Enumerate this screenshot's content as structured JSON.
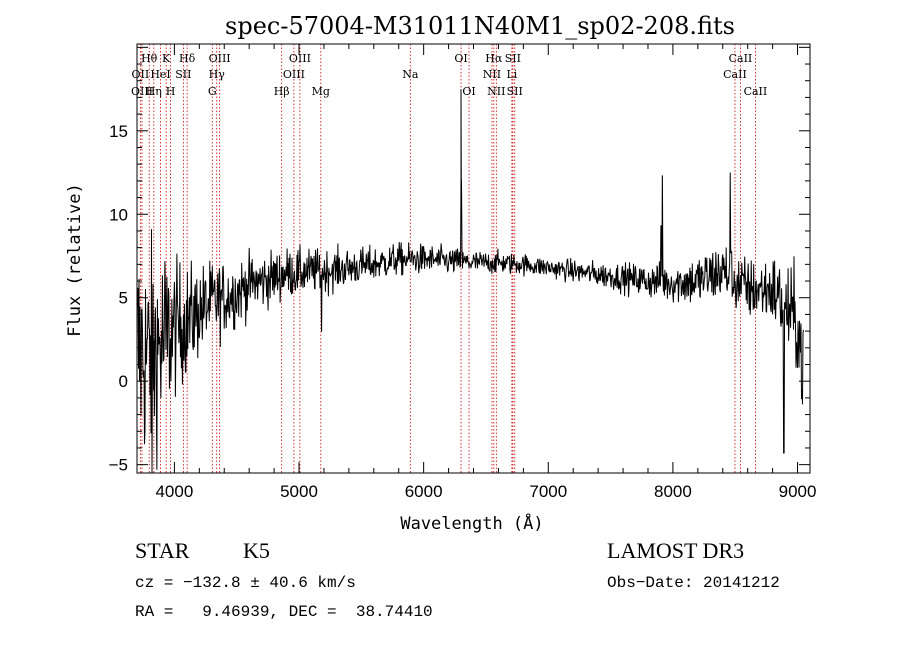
{
  "chart_data": {
    "type": "line",
    "title": "spec-57004-M31011N40M1_sp02-208.fits",
    "xlabel": "Wavelength (Å)",
    "ylabel": "Flux (relative)",
    "xlim": [
      3700,
      9100
    ],
    "ylim": [
      -5.5,
      20.2
    ],
    "x_ticks": [
      4000,
      5000,
      6000,
      7000,
      8000,
      9000
    ],
    "y_ticks": [
      -5,
      0,
      5,
      10,
      15
    ],
    "x_tick_labels": [
      "4000",
      "5000",
      "6000",
      "7000",
      "8000",
      "9000"
    ],
    "y_tick_labels": [
      "−5",
      "0",
      "5",
      "10",
      "15"
    ],
    "line_color": "#000000",
    "marker_color": "#cc0000",
    "spectral_lines": [
      {
        "label": "Hθ",
        "wavelength": 3798,
        "row": 1
      },
      {
        "label": "OII",
        "wavelength": 3727,
        "row": 2
      },
      {
        "label": "OIII",
        "wavelength": 3740,
        "row": 3
      },
      {
        "label": "Hη",
        "wavelength": 3835,
        "row": 3
      },
      {
        "label": "K",
        "wavelength": 3934,
        "row": 1
      },
      {
        "label": "HeI",
        "wavelength": 3889,
        "row": 2
      },
      {
        "label": "H",
        "wavelength": 3969,
        "row": 3
      },
      {
        "label": "SII",
        "wavelength": 4072,
        "row": 2
      },
      {
        "label": "Hδ",
        "wavelength": 4102,
        "row": 1
      },
      {
        "label": "OIII",
        "wavelength": 4363,
        "row": 1
      },
      {
        "label": "Hγ",
        "wavelength": 4340,
        "row": 2
      },
      {
        "label": "G",
        "wavelength": 4304,
        "row": 3
      },
      {
        "label": "Hβ",
        "wavelength": 4861,
        "row": 3
      },
      {
        "label": "OIII",
        "wavelength": 5007,
        "row": 1
      },
      {
        "label": "OIII",
        "wavelength": 4959,
        "row": 2
      },
      {
        "label": "Mg",
        "wavelength": 5175,
        "row": 3
      },
      {
        "label": "Na",
        "wavelength": 5893,
        "row": 2
      },
      {
        "label": "OI",
        "wavelength": 6300,
        "row": 1
      },
      {
        "label": "OI",
        "wavelength": 6364,
        "row": 3
      },
      {
        "label": "Hα",
        "wavelength": 6563,
        "row": 1
      },
      {
        "label": "SII",
        "wavelength": 6716,
        "row": 1
      },
      {
        "label": "NII",
        "wavelength": 6548,
        "row": 2
      },
      {
        "label": "Li",
        "wavelength": 6708,
        "row": 2
      },
      {
        "label": "NII",
        "wavelength": 6583,
        "row": 3
      },
      {
        "label": "SII",
        "wavelength": 6731,
        "row": 3
      },
      {
        "label": "CaII",
        "wavelength": 8542,
        "row": 1
      },
      {
        "label": "CaII",
        "wavelength": 8498,
        "row": 2
      },
      {
        "label": "CaII",
        "wavelength": 8662,
        "row": 3
      }
    ],
    "continuum": [
      [
        3700,
        2.0
      ],
      [
        3800,
        1.5
      ],
      [
        3900,
        2.2
      ],
      [
        4000,
        3.2
      ],
      [
        4100,
        3.6
      ],
      [
        4200,
        4.2
      ],
      [
        4300,
        4.7
      ],
      [
        4400,
        5.0
      ],
      [
        4500,
        5.3
      ],
      [
        4600,
        5.8
      ],
      [
        4700,
        6.0
      ],
      [
        4800,
        6.2
      ],
      [
        4900,
        6.5
      ],
      [
        5000,
        6.5
      ],
      [
        5100,
        6.6
      ],
      [
        5200,
        6.6
      ],
      [
        5400,
        6.8
      ],
      [
        5600,
        7.0
      ],
      [
        5800,
        7.3
      ],
      [
        6000,
        7.3
      ],
      [
        6200,
        7.2
      ],
      [
        6400,
        7.1
      ],
      [
        6600,
        7.1
      ],
      [
        6800,
        7.0
      ],
      [
        7000,
        6.8
      ],
      [
        7200,
        6.6
      ],
      [
        7400,
        6.4
      ],
      [
        7600,
        6.2
      ],
      [
        7800,
        6.0
      ],
      [
        8000,
        5.9
      ],
      [
        8200,
        6.0
      ],
      [
        8400,
        6.6
      ],
      [
        8500,
        6.0
      ],
      [
        8600,
        5.5
      ],
      [
        8800,
        5.5
      ],
      [
        9000,
        3.5
      ],
      [
        9050,
        0.3
      ]
    ],
    "noise_sigma": [
      [
        3700,
        3.5
      ],
      [
        3900,
        3.2
      ],
      [
        4000,
        2.0
      ],
      [
        4200,
        1.4
      ],
      [
        4400,
        1.1
      ],
      [
        4600,
        0.9
      ],
      [
        5000,
        0.7
      ],
      [
        5500,
        0.55
      ],
      [
        6000,
        0.45
      ],
      [
        6500,
        0.35
      ],
      [
        7000,
        0.3
      ],
      [
        7500,
        0.4
      ],
      [
        8000,
        0.6
      ],
      [
        8300,
        0.9
      ],
      [
        8500,
        1.0
      ],
      [
        8700,
        0.9
      ],
      [
        8900,
        1.3
      ],
      [
        9050,
        1.6
      ]
    ],
    "features": [
      {
        "x": 6300,
        "y": 17.5
      },
      {
        "x": 6302,
        "y": 12.0
      },
      {
        "x": 7915,
        "y": 12.3
      },
      {
        "x": 7906,
        "y": 9.3
      },
      {
        "x": 8460,
        "y": 12.5
      },
      {
        "x": 8890,
        "y": -4.3
      },
      {
        "x": 5181,
        "y": 3.0
      },
      {
        "x": 3820,
        "y": -5.5
      },
      {
        "x": 3860,
        "y": -5.3
      }
    ]
  },
  "info": {
    "object_class": "STAR",
    "subclass": "K5",
    "survey": "LAMOST DR3",
    "redshift_text": "cz = −132.8 ± 40.6 km/s",
    "obs_date_text": "Obs−Date: 20141212",
    "coords_text": "RA =   9.46939, DEC =  38.74410"
  }
}
